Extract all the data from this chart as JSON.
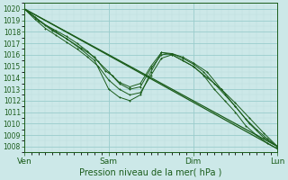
{
  "title": "Pression niveau de la mer( hPa )",
  "bg_color": "#cce8e8",
  "grid_color_major": "#99cccc",
  "grid_color_minor": "#bbdddd",
  "line_color": "#1a5c1a",
  "ylim": [
    1007.5,
    1020.5
  ],
  "yticks": [
    1008,
    1009,
    1010,
    1011,
    1012,
    1013,
    1014,
    1015,
    1016,
    1017,
    1018,
    1019,
    1020
  ],
  "xlim": [
    0,
    72
  ],
  "xtick_positions": [
    0,
    24,
    48,
    72
  ],
  "xtick_labels": [
    "Ven",
    "Sam",
    "Dim",
    "Lun"
  ],
  "straight1": {
    "x": [
      0,
      72
    ],
    "y": [
      1020.0,
      1008.0
    ]
  },
  "straight2": {
    "x": [
      0,
      72
    ],
    "y": [
      1020.0,
      1007.8
    ]
  },
  "wavy1": {
    "x": [
      0,
      3,
      6,
      9,
      12,
      15,
      18,
      21,
      24,
      27,
      30,
      33,
      36,
      39,
      42,
      45,
      48,
      51,
      54,
      57,
      60,
      63,
      66,
      69,
      72
    ],
    "y": [
      1020.0,
      1019.3,
      1018.6,
      1018.1,
      1017.6,
      1017.0,
      1016.3,
      1015.4,
      1014.5,
      1013.5,
      1013.0,
      1013.2,
      1014.8,
      1016.0,
      1016.1,
      1015.7,
      1015.2,
      1014.5,
      1013.5,
      1012.5,
      1011.5,
      1010.4,
      1009.5,
      1008.7,
      1008.0
    ]
  },
  "wavy2": {
    "x": [
      0,
      3,
      6,
      9,
      12,
      15,
      18,
      21,
      24,
      27,
      30,
      33,
      36,
      39,
      42,
      45,
      48,
      51,
      54,
      57,
      60,
      63,
      66,
      69,
      72
    ],
    "y": [
      1020.0,
      1019.1,
      1018.3,
      1017.7,
      1017.1,
      1016.5,
      1015.8,
      1015.0,
      1013.8,
      1013.0,
      1012.5,
      1012.7,
      1014.2,
      1015.7,
      1016.0,
      1015.5,
      1015.0,
      1014.2,
      1013.0,
      1012.0,
      1011.0,
      1009.8,
      1009.0,
      1008.3,
      1007.8
    ]
  },
  "wavy3": {
    "x": [
      0,
      4,
      8,
      12,
      16,
      20,
      24,
      27,
      30,
      33,
      36,
      39,
      42,
      48,
      52,
      56,
      60,
      64,
      68,
      72
    ],
    "y": [
      1020.0,
      1019.0,
      1018.2,
      1017.4,
      1016.5,
      1015.5,
      1013.0,
      1012.3,
      1012.0,
      1012.5,
      1014.5,
      1016.2,
      1016.0,
      1015.0,
      1014.0,
      1013.0,
      1011.5,
      1010.0,
      1008.8,
      1008.0
    ]
  },
  "wavy4": {
    "x": [
      0,
      4,
      8,
      12,
      16,
      20,
      23,
      25,
      27,
      30,
      33,
      36,
      39,
      42,
      45,
      48,
      52,
      56,
      60,
      64,
      68,
      72
    ],
    "y": [
      1020.0,
      1019.0,
      1018.1,
      1017.4,
      1016.6,
      1015.8,
      1014.6,
      1014.2,
      1013.6,
      1013.2,
      1013.5,
      1015.0,
      1016.2,
      1016.1,
      1015.8,
      1015.3,
      1014.5,
      1013.0,
      1011.8,
      1010.5,
      1009.2,
      1008.0
    ]
  }
}
